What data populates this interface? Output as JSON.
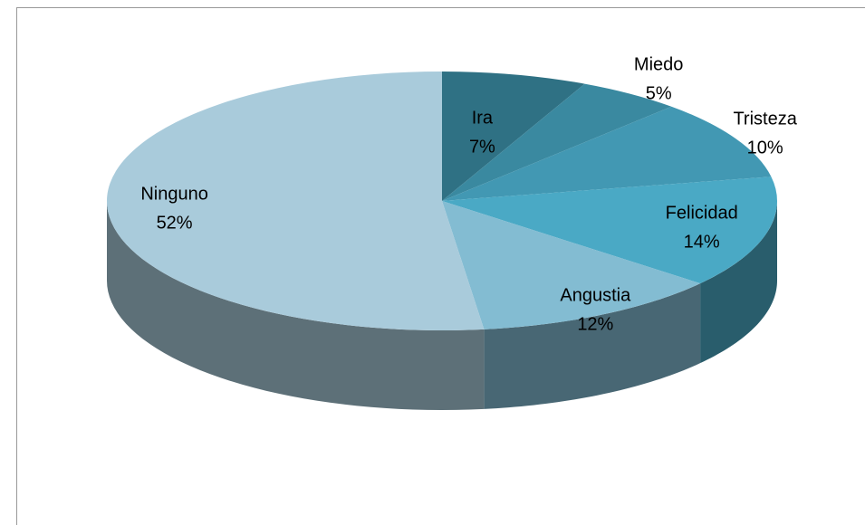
{
  "chart_data": {
    "type": "pie",
    "categories": [
      "Ira",
      "Miedo",
      "Tristeza",
      "Felicidad",
      "Angustia",
      "Ninguno"
    ],
    "values": [
      7,
      5,
      10,
      14,
      12,
      52
    ],
    "value_labels": [
      "7%",
      "5%",
      "10%",
      "14%",
      "12%",
      "52%"
    ],
    "colors": [
      "#2f7184",
      "#3a89a0",
      "#4298b3",
      "#4aa9c5",
      "#83bcd2",
      "#a9cbdb"
    ]
  }
}
